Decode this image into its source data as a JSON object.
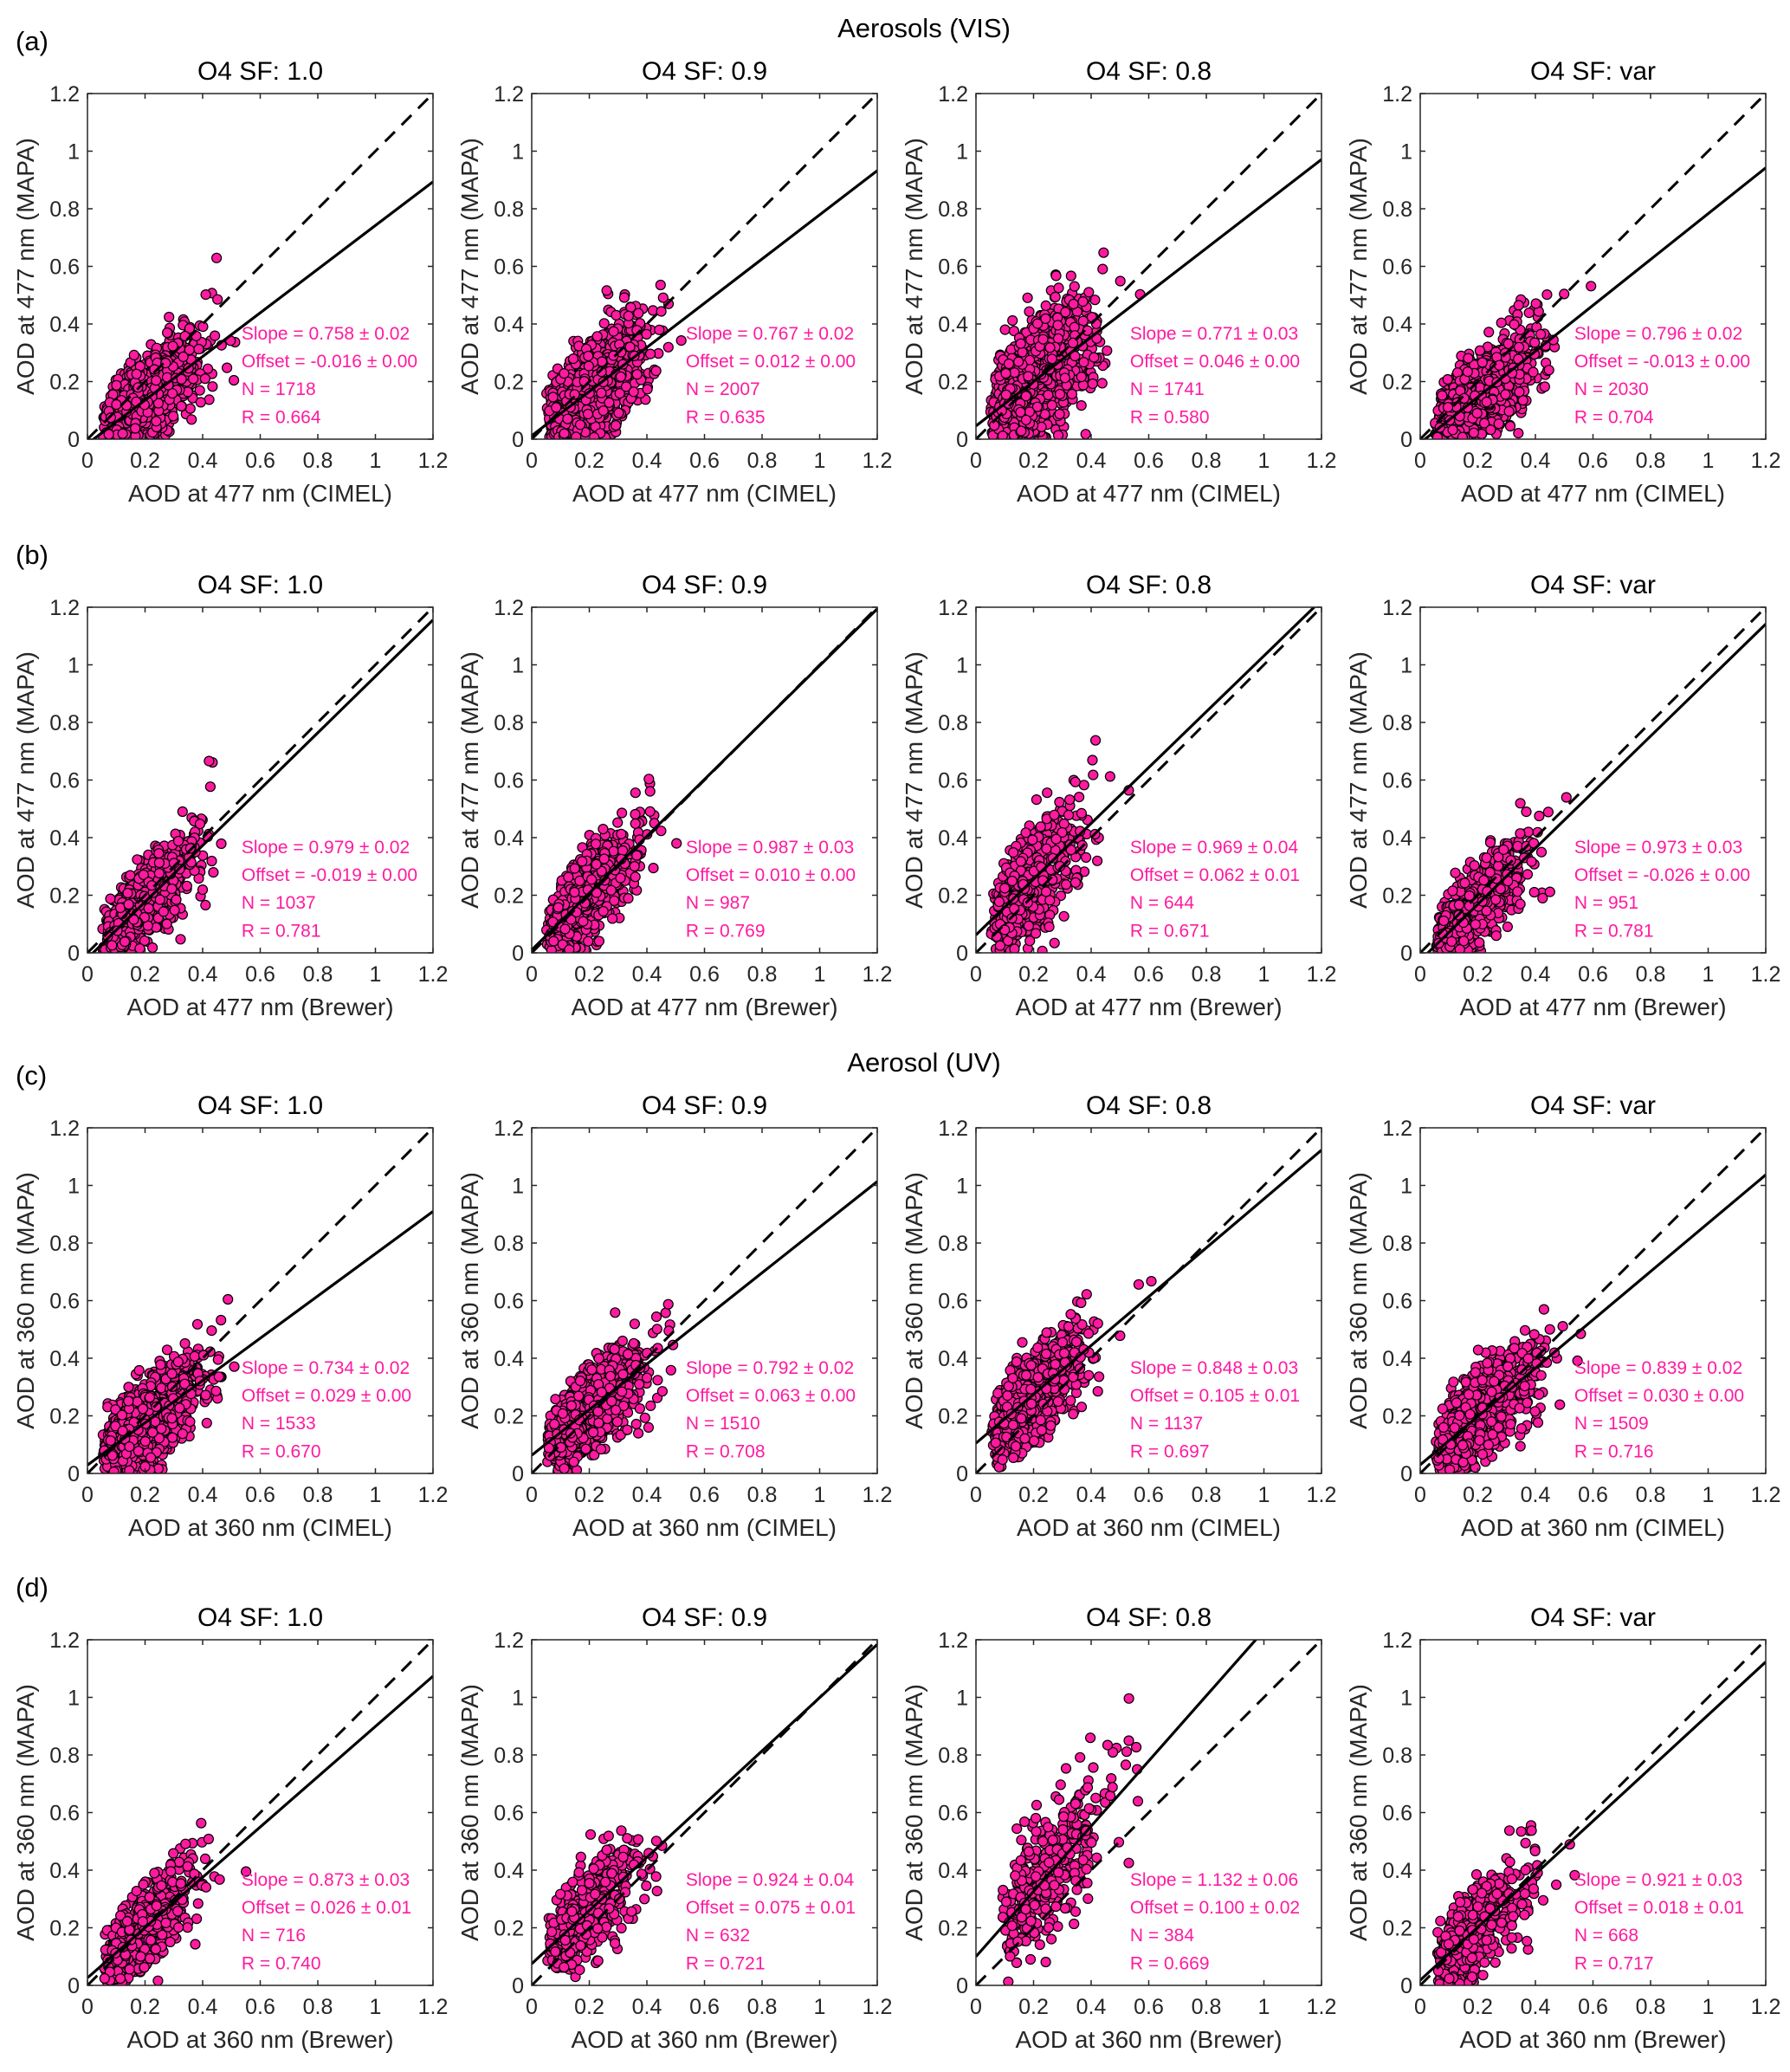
{
  "figure": {
    "sections": [
      {
        "label": "(a)",
        "title": "Aerosols (VIS)"
      },
      {
        "label": "(b)",
        "title": ""
      },
      {
        "label": "(c)",
        "title": "Aerosol (UV)"
      },
      {
        "label": "(d)",
        "title": ""
      }
    ],
    "colors": {
      "marker_fill": "#FF1AA0",
      "marker_edge": "#000000",
      "stats_text": "#FF1AA0",
      "fit_line": "#000000",
      "one_to_one_line": "#000000"
    }
  },
  "chart_data": [
    {
      "type": "scatter",
      "row": "(a)",
      "title": "O4 SF: 1.0",
      "xlabel": "AOD at 477 nm (CIMEL)",
      "ylabel": "AOD at 477 nm (MAPA)",
      "xlim": [
        0,
        1.2
      ],
      "ylim": [
        0,
        1.2
      ],
      "ticks": [
        "0",
        "0.2",
        "0.4",
        "0.6",
        "0.8",
        "1",
        "1.2"
      ],
      "slope": 0.758,
      "offset": -0.016,
      "N": 1718,
      "R": 0.664,
      "stats": [
        "Slope = 0.758 ± 0.02",
        "Offset = -0.016 ± 0.00",
        "N = 1718",
        "R = 0.664"
      ]
    },
    {
      "type": "scatter",
      "row": "(a)",
      "title": "O4 SF: 0.9",
      "xlabel": "AOD at 477 nm (CIMEL)",
      "ylabel": "AOD at 477 nm (MAPA)",
      "xlim": [
        0,
        1.2
      ],
      "ylim": [
        0,
        1.2
      ],
      "ticks": [
        "0",
        "0.2",
        "0.4",
        "0.6",
        "0.8",
        "1",
        "1.2"
      ],
      "slope": 0.767,
      "offset": 0.012,
      "N": 2007,
      "R": 0.635,
      "stats": [
        "Slope = 0.767 ± 0.02",
        "Offset = 0.012 ± 0.00",
        "N = 2007",
        "R = 0.635"
      ]
    },
    {
      "type": "scatter",
      "row": "(a)",
      "title": "O4 SF: 0.8",
      "xlabel": "AOD at 477 nm (CIMEL)",
      "ylabel": "AOD at 477 nm (MAPA)",
      "xlim": [
        0,
        1.2
      ],
      "ylim": [
        0,
        1.2
      ],
      "ticks": [
        "0",
        "0.2",
        "0.4",
        "0.6",
        "0.8",
        "1",
        "1.2"
      ],
      "slope": 0.771,
      "offset": 0.046,
      "N": 1741,
      "R": 0.58,
      "stats": [
        "Slope = 0.771 ± 0.03",
        "Offset = 0.046 ± 0.00",
        "N = 1741",
        "R = 0.580"
      ]
    },
    {
      "type": "scatter",
      "row": "(a)",
      "title": "O4 SF: var",
      "xlabel": "AOD at 477 nm (CIMEL)",
      "ylabel": "AOD at 477 nm (MAPA)",
      "xlim": [
        0,
        1.2
      ],
      "ylim": [
        0,
        1.2
      ],
      "ticks": [
        "0",
        "0.2",
        "0.4",
        "0.6",
        "0.8",
        "1",
        "1.2"
      ],
      "slope": 0.796,
      "offset": -0.013,
      "N": 2030,
      "R": 0.704,
      "stats": [
        "Slope = 0.796 ± 0.02",
        "Offset = -0.013 ± 0.00",
        "N = 2030",
        "R = 0.704"
      ]
    },
    {
      "type": "scatter",
      "row": "(b)",
      "title": "O4 SF: 1.0",
      "xlabel": "AOD at 477 nm (Brewer)",
      "ylabel": "AOD at 477 nm (MAPA)",
      "xlim": [
        0,
        1.2
      ],
      "ylim": [
        0,
        1.2
      ],
      "ticks": [
        "0",
        "0.2",
        "0.4",
        "0.6",
        "0.8",
        "1",
        "1.2"
      ],
      "slope": 0.979,
      "offset": -0.019,
      "N": 1037,
      "R": 0.781,
      "stats": [
        "Slope = 0.979 ± 0.02",
        "Offset = -0.019 ± 0.00",
        "N = 1037",
        "R = 0.781"
      ]
    },
    {
      "type": "scatter",
      "row": "(b)",
      "title": "O4 SF: 0.9",
      "xlabel": "AOD at 477 nm (Brewer)",
      "ylabel": "AOD at 477 nm (MAPA)",
      "xlim": [
        0,
        1.2
      ],
      "ylim": [
        0,
        1.2
      ],
      "ticks": [
        "0",
        "0.2",
        "0.4",
        "0.6",
        "0.8",
        "1",
        "1.2"
      ],
      "slope": 0.987,
      "offset": 0.01,
      "N": 987,
      "R": 0.769,
      "stats": [
        "Slope = 0.987 ± 0.03",
        "Offset = 0.010 ± 0.00",
        "N = 987",
        "R = 0.769"
      ]
    },
    {
      "type": "scatter",
      "row": "(b)",
      "title": "O4 SF: 0.8",
      "xlabel": "AOD at 477 nm (Brewer)",
      "ylabel": "AOD at 477 nm (MAPA)",
      "xlim": [
        0,
        1.2
      ],
      "ylim": [
        0,
        1.2
      ],
      "ticks": [
        "0",
        "0.2",
        "0.4",
        "0.6",
        "0.8",
        "1",
        "1.2"
      ],
      "slope": 0.969,
      "offset": 0.062,
      "N": 644,
      "R": 0.671,
      "stats": [
        "Slope = 0.969 ± 0.04",
        "Offset = 0.062 ± 0.01",
        "N = 644",
        "R = 0.671"
      ]
    },
    {
      "type": "scatter",
      "row": "(b)",
      "title": "O4 SF: var",
      "xlabel": "AOD at 477 nm (Brewer)",
      "ylabel": "AOD at 477 nm (MAPA)",
      "xlim": [
        0,
        1.2
      ],
      "ylim": [
        0,
        1.2
      ],
      "ticks": [
        "0",
        "0.2",
        "0.4",
        "0.6",
        "0.8",
        "1",
        "1.2"
      ],
      "slope": 0.973,
      "offset": -0.026,
      "N": 951,
      "R": 0.781,
      "stats": [
        "Slope = 0.973 ± 0.03",
        "Offset = -0.026 ± 0.00",
        "N = 951",
        "R = 0.781"
      ]
    },
    {
      "type": "scatter",
      "row": "(c)",
      "title": "O4 SF: 1.0",
      "xlabel": "AOD at 360 nm (CIMEL)",
      "ylabel": "AOD at 360 nm (MAPA)",
      "xlim": [
        0,
        1.2
      ],
      "ylim": [
        0,
        1.2
      ],
      "ticks": [
        "0",
        "0.2",
        "0.4",
        "0.6",
        "0.8",
        "1",
        "1.2"
      ],
      "slope": 0.734,
      "offset": 0.029,
      "N": 1533,
      "R": 0.67,
      "stats": [
        "Slope = 0.734 ± 0.02",
        "Offset = 0.029 ± 0.00",
        "N = 1533",
        "R = 0.670"
      ]
    },
    {
      "type": "scatter",
      "row": "(c)",
      "title": "O4 SF: 0.9",
      "xlabel": "AOD at 360 nm (CIMEL)",
      "ylabel": "AOD at 360 nm (MAPA)",
      "xlim": [
        0,
        1.2
      ],
      "ylim": [
        0,
        1.2
      ],
      "ticks": [
        "0",
        "0.2",
        "0.4",
        "0.6",
        "0.8",
        "1",
        "1.2"
      ],
      "slope": 0.792,
      "offset": 0.063,
      "N": 1510,
      "R": 0.708,
      "stats": [
        "Slope = 0.792 ± 0.02",
        "Offset = 0.063 ± 0.00",
        "N = 1510",
        "R = 0.708"
      ]
    },
    {
      "type": "scatter",
      "row": "(c)",
      "title": "O4 SF: 0.8",
      "xlabel": "AOD at 360 nm (CIMEL)",
      "ylabel": "AOD at 360 nm (MAPA)",
      "xlim": [
        0,
        1.2
      ],
      "ylim": [
        0,
        1.2
      ],
      "ticks": [
        "0",
        "0.2",
        "0.4",
        "0.6",
        "0.8",
        "1",
        "1.2"
      ],
      "slope": 0.848,
      "offset": 0.105,
      "N": 1137,
      "R": 0.697,
      "stats": [
        "Slope = 0.848 ± 0.03",
        "Offset = 0.105 ± 0.01",
        "N = 1137",
        "R = 0.697"
      ]
    },
    {
      "type": "scatter",
      "row": "(c)",
      "title": "O4 SF: var",
      "xlabel": "AOD at 360 nm (CIMEL)",
      "ylabel": "AOD at 360 nm (MAPA)",
      "xlim": [
        0,
        1.2
      ],
      "ylim": [
        0,
        1.2
      ],
      "ticks": [
        "0",
        "0.2",
        "0.4",
        "0.6",
        "0.8",
        "1",
        "1.2"
      ],
      "slope": 0.839,
      "offset": 0.03,
      "N": 1509,
      "R": 0.716,
      "stats": [
        "Slope = 0.839 ± 0.02",
        "Offset = 0.030 ± 0.00",
        "N = 1509",
        "R = 0.716"
      ]
    },
    {
      "type": "scatter",
      "row": "(d)",
      "title": "O4 SF: 1.0",
      "xlabel": "AOD at 360 nm (Brewer)",
      "ylabel": "AOD at 360 nm (MAPA)",
      "xlim": [
        0,
        1.2
      ],
      "ylim": [
        0,
        1.2
      ],
      "ticks": [
        "0",
        "0.2",
        "0.4",
        "0.6",
        "0.8",
        "1",
        "1.2"
      ],
      "slope": 0.873,
      "offset": 0.026,
      "N": 716,
      "R": 0.74,
      "stats": [
        "Slope = 0.873 ± 0.03",
        "Offset = 0.026 ± 0.01",
        "N = 716",
        "R = 0.740"
      ]
    },
    {
      "type": "scatter",
      "row": "(d)",
      "title": "O4 SF: 0.9",
      "xlabel": "AOD at 360 nm (Brewer)",
      "ylabel": "AOD at 360 nm (MAPA)",
      "xlim": [
        0,
        1.2
      ],
      "ylim": [
        0,
        1.2
      ],
      "ticks": [
        "0",
        "0.2",
        "0.4",
        "0.6",
        "0.8",
        "1",
        "1.2"
      ],
      "slope": 0.924,
      "offset": 0.075,
      "N": 632,
      "R": 0.721,
      "stats": [
        "Slope = 0.924 ± 0.04",
        "Offset = 0.075 ± 0.01",
        "N = 632",
        "R = 0.721"
      ]
    },
    {
      "type": "scatter",
      "row": "(d)",
      "title": "O4 SF: 0.8",
      "xlabel": "AOD at 360 nm (Brewer)",
      "ylabel": "AOD at 360 nm (MAPA)",
      "xlim": [
        0,
        1.2
      ],
      "ylim": [
        0,
        1.2
      ],
      "ticks": [
        "0",
        "0.2",
        "0.4",
        "0.6",
        "0.8",
        "1",
        "1.2"
      ],
      "slope": 1.132,
      "offset": 0.1,
      "N": 384,
      "R": 0.669,
      "stats": [
        "Slope = 1.132 ± 0.06",
        "Offset = 0.100 ± 0.02",
        "N = 384",
        "R = 0.669"
      ]
    },
    {
      "type": "scatter",
      "row": "(d)",
      "title": "O4 SF: var",
      "xlabel": "AOD at 360 nm (Brewer)",
      "ylabel": "AOD at 360 nm (MAPA)",
      "xlim": [
        0,
        1.2
      ],
      "ylim": [
        0,
        1.2
      ],
      "ticks": [
        "0",
        "0.2",
        "0.4",
        "0.6",
        "0.8",
        "1",
        "1.2"
      ],
      "slope": 0.921,
      "offset": 0.018,
      "N": 668,
      "R": 0.717,
      "stats": [
        "Slope = 0.921 ± 0.03",
        "Offset = 0.018 ± 0.01",
        "N = 668",
        "R = 0.717"
      ]
    }
  ]
}
